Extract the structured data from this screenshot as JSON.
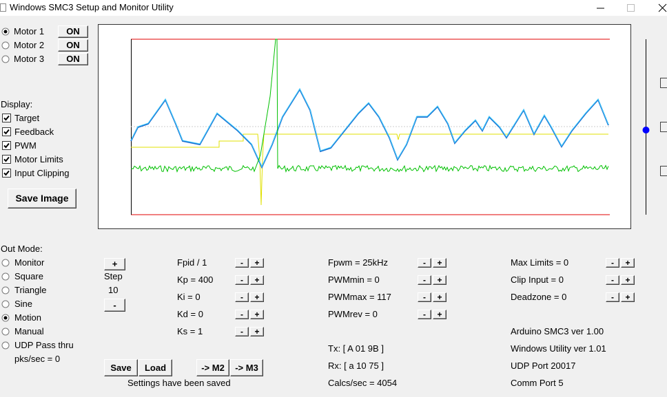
{
  "window": {
    "title": "Windows SMC3 Setup and Monitor Utility"
  },
  "motors": [
    {
      "label": "Motor 1",
      "button": "ON",
      "selected": true
    },
    {
      "label": "Motor 2",
      "button": "ON",
      "selected": false
    },
    {
      "label": "Motor 3",
      "button": "ON",
      "selected": false
    }
  ],
  "display": {
    "label": "Display:",
    "options": [
      {
        "label": "Target",
        "checked": true
      },
      {
        "label": "Feedback",
        "checked": true
      },
      {
        "label": "PWM",
        "checked": true
      },
      {
        "label": "Motor Limits",
        "checked": true
      },
      {
        "label": "Input Clipping",
        "checked": true
      }
    ]
  },
  "save_image": "Save Image",
  "out_mode": {
    "label": "Out Mode:",
    "options": [
      {
        "label": "Monitor",
        "selected": false
      },
      {
        "label": "Square",
        "selected": false
      },
      {
        "label": "Triangle",
        "selected": false
      },
      {
        "label": "Sine",
        "selected": false
      },
      {
        "label": "Motion",
        "selected": true
      },
      {
        "label": "Manual",
        "selected": false
      },
      {
        "label": "UDP Pass thru",
        "selected": false
      }
    ],
    "rate": "pks/sec = 0"
  },
  "step": {
    "plus": "+",
    "label": "Step",
    "value": "10",
    "minus": "-"
  },
  "buttons": {
    "minus": "-",
    "plus": "+"
  },
  "pid": [
    "Fpid / 1",
    "Kp = 400",
    "Ki = 0",
    "Kd = 0",
    "Ks = 1"
  ],
  "pwm": [
    "Fpwm = 25kHz",
    "PWMmin = 0",
    "PWMmax = 117",
    "PWMrev = 0"
  ],
  "limits": [
    "Max Limits = 0",
    "Clip Input = 0",
    "Deadzone = 0"
  ],
  "info": [
    "Arduino SMC3 ver 1.00",
    "Windows Utility ver 1.01",
    "UDP Port 20017",
    "Comm Port 5"
  ],
  "comms": [
    "Tx: [ A 01 9B ]",
    "Rx: [ a 10 75 ]",
    "Calcs/sec = 4054"
  ],
  "actions": [
    "Save",
    "Load",
    "-> M2",
    "-> M3"
  ],
  "status": "Settings have been saved"
}
